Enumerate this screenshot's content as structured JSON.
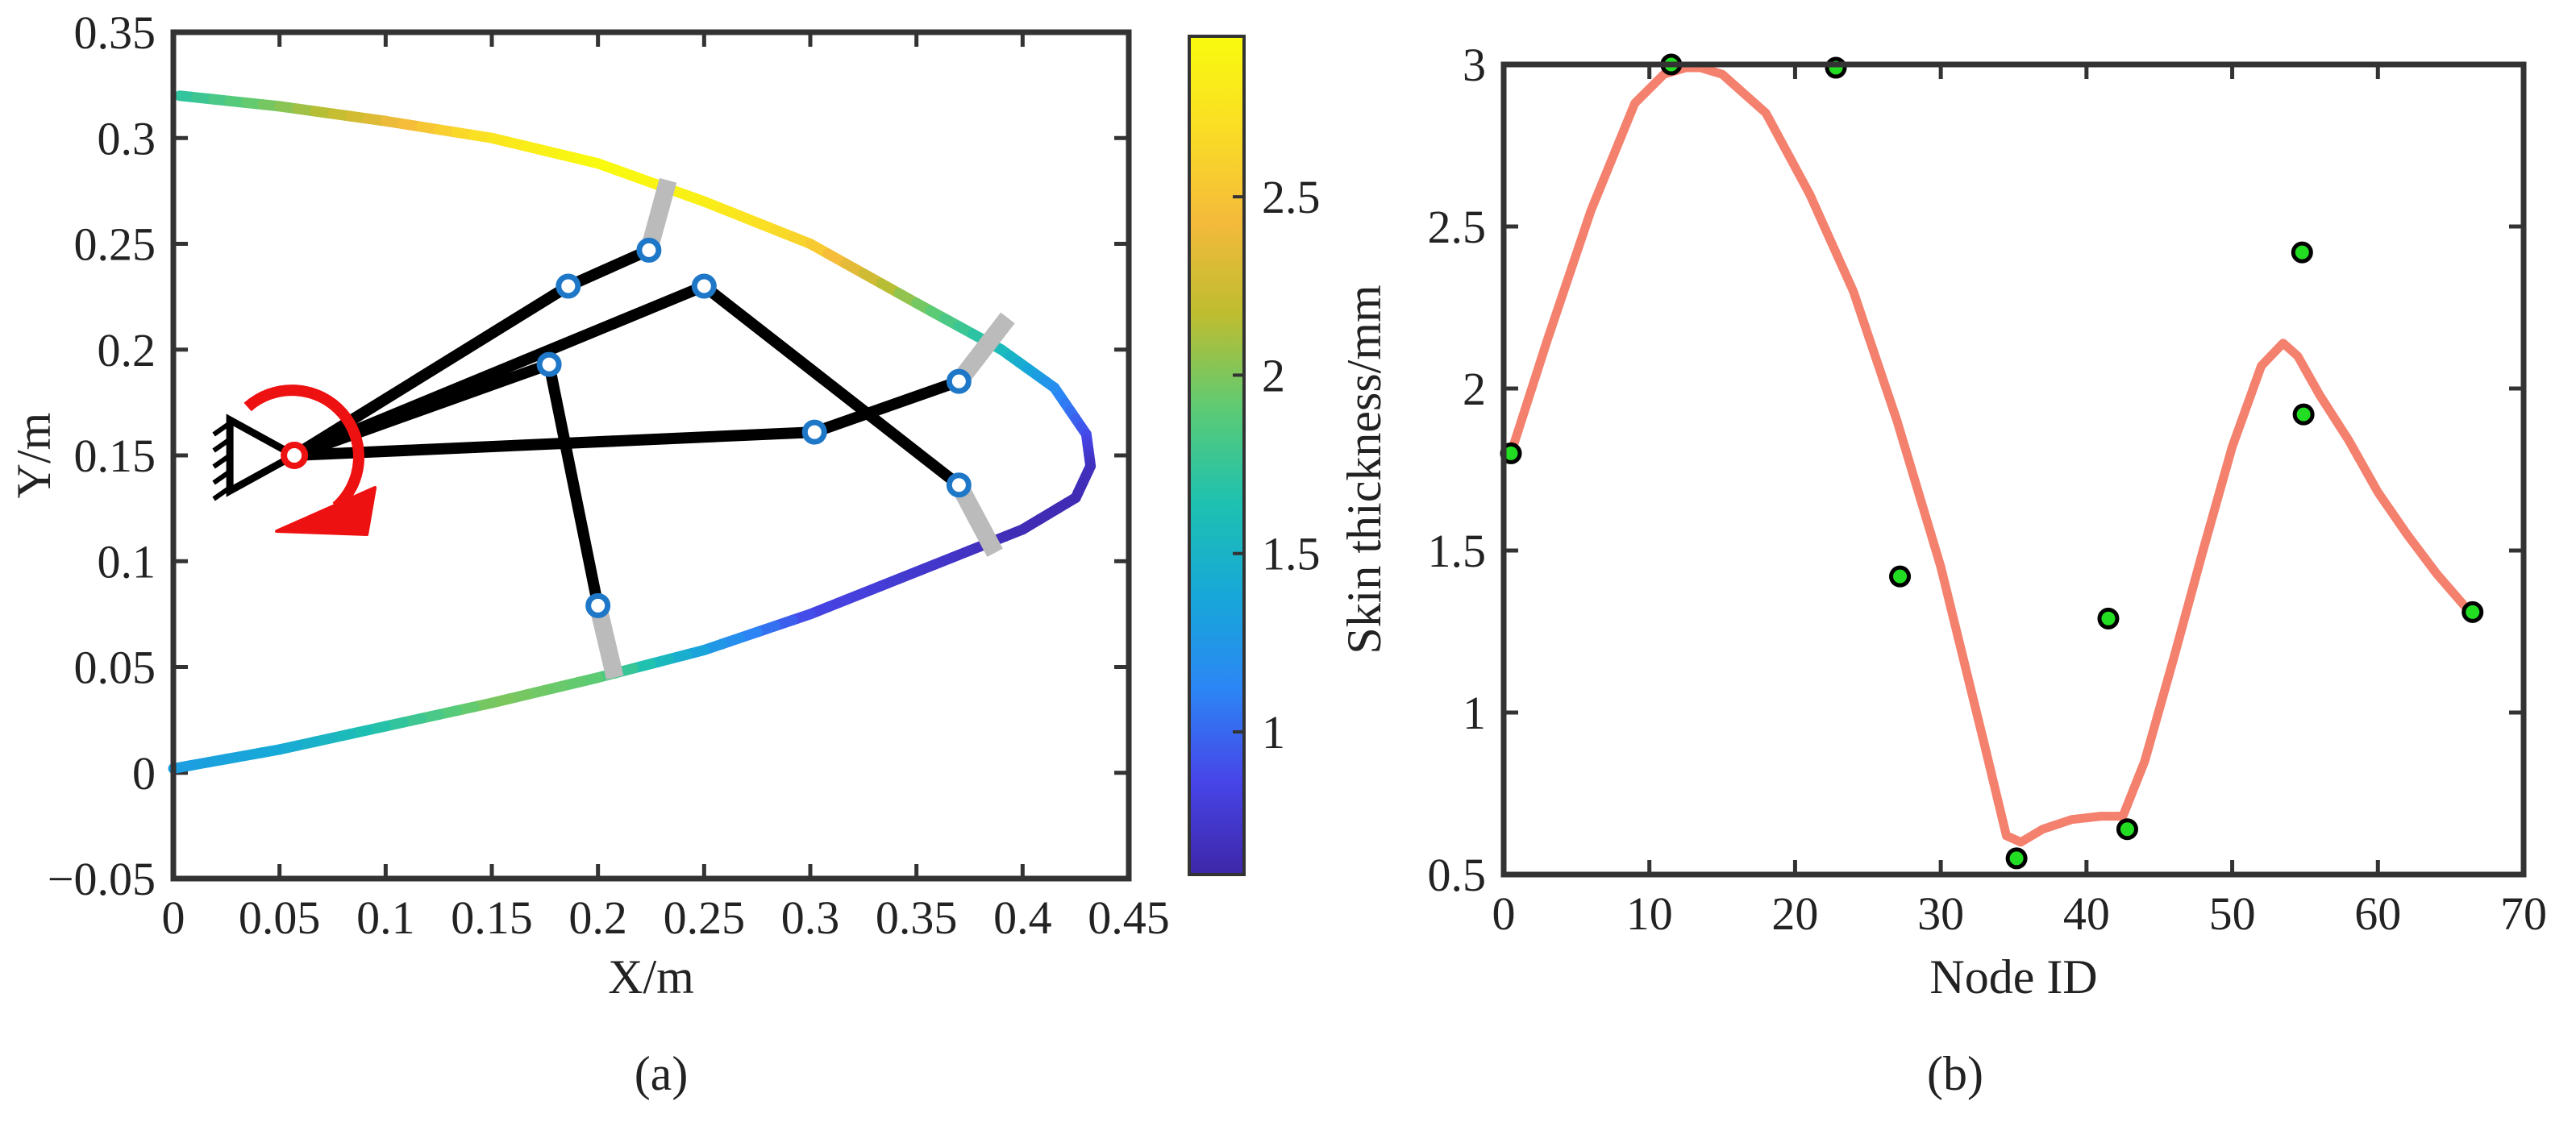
{
  "panels": {
    "a": {
      "caption": "(a)"
    },
    "b": {
      "caption": "(b)"
    }
  },
  "chart_data": [
    {
      "type": "scatter",
      "xlabel": "X/m",
      "ylabel": "Y/m",
      "xlim": [
        0,
        0.45
      ],
      "ylim": [
        -0.05,
        0.35
      ],
      "xticks": [
        "0",
        "0.05",
        "0.1",
        "0.15",
        "0.2",
        "0.25",
        "0.3",
        "0.35",
        "0.4",
        "0.45"
      ],
      "yticks": [
        "−0.05",
        "0",
        "0.05",
        "0.1",
        "0.15",
        "0.2",
        "0.25",
        "0.3",
        "0.35"
      ],
      "colorbar": {
        "range": [
          0.6,
          2.95
        ],
        "ticks": [
          "1",
          "1.5",
          "2",
          "2.5"
        ],
        "colormap": [
          "#3e26a8",
          "#4745e8",
          "#2b86f5",
          "#17a8d8",
          "#1ec1b0",
          "#5ccb74",
          "#bdbd30",
          "#f4ba3b",
          "#fadd25",
          "#f9fb0e"
        ]
      },
      "skin_curve": [
        {
          "x": 0.003,
          "y": 0.32,
          "v": 1.7
        },
        {
          "x": 0.05,
          "y": 0.315,
          "v": 2.0
        },
        {
          "x": 0.1,
          "y": 0.308,
          "v": 2.35
        },
        {
          "x": 0.15,
          "y": 0.3,
          "v": 2.75
        },
        {
          "x": 0.2,
          "y": 0.288,
          "v": 2.95
        },
        {
          "x": 0.25,
          "y": 0.27,
          "v": 2.85
        },
        {
          "x": 0.3,
          "y": 0.25,
          "v": 2.6
        },
        {
          "x": 0.35,
          "y": 0.222,
          "v": 2.0
        },
        {
          "x": 0.39,
          "y": 0.2,
          "v": 1.6
        },
        {
          "x": 0.415,
          "y": 0.182,
          "v": 1.2
        },
        {
          "x": 0.43,
          "y": 0.16,
          "v": 0.9
        },
        {
          "x": 0.432,
          "y": 0.145,
          "v": 0.7
        },
        {
          "x": 0.425,
          "y": 0.13,
          "v": 0.65
        },
        {
          "x": 0.4,
          "y": 0.115,
          "v": 0.65
        },
        {
          "x": 0.35,
          "y": 0.095,
          "v": 0.75
        },
        {
          "x": 0.3,
          "y": 0.075,
          "v": 0.85
        },
        {
          "x": 0.25,
          "y": 0.058,
          "v": 1.3
        },
        {
          "x": 0.2,
          "y": 0.045,
          "v": 1.9
        },
        {
          "x": 0.15,
          "y": 0.033,
          "v": 2.0
        },
        {
          "x": 0.1,
          "y": 0.022,
          "v": 1.7
        },
        {
          "x": 0.05,
          "y": 0.011,
          "v": 1.4
        },
        {
          "x": 0.0,
          "y": 0.002,
          "v": 1.3
        }
      ],
      "pivot": {
        "x": 0.057,
        "y": 0.15
      },
      "joints": [
        {
          "x": 0.186,
          "y": 0.23
        },
        {
          "x": 0.224,
          "y": 0.247
        },
        {
          "x": 0.25,
          "y": 0.23
        },
        {
          "x": 0.177,
          "y": 0.193
        },
        {
          "x": 0.302,
          "y": 0.161
        },
        {
          "x": 0.37,
          "y": 0.185
        },
        {
          "x": 0.37,
          "y": 0.136
        },
        {
          "x": 0.2,
          "y": 0.079
        }
      ],
      "links": [
        {
          "from": "pivot",
          "to": 0
        },
        {
          "from": 0,
          "to": 1
        },
        {
          "from": "pivot",
          "to": 2
        },
        {
          "from": 2,
          "to": 6
        },
        {
          "from": "pivot",
          "to": 3
        },
        {
          "from": 3,
          "to": 7
        },
        {
          "from": "pivot",
          "to": 4
        },
        {
          "from": 4,
          "to": 5
        }
      ],
      "connectors": [
        {
          "joint": 1,
          "x": 0.233,
          "y": 0.28
        },
        {
          "joint": 5,
          "x": 0.393,
          "y": 0.215
        },
        {
          "joint": 6,
          "x": 0.387,
          "y": 0.104
        },
        {
          "joint": 7,
          "x": 0.208,
          "y": 0.045
        }
      ]
    },
    {
      "type": "line",
      "xlabel": "Node ID",
      "ylabel": "Skin thickness/mm",
      "xlim": [
        0,
        70
      ],
      "ylim": [
        0.5,
        3
      ],
      "xticks": [
        "0",
        "10",
        "20",
        "30",
        "40",
        "50",
        "60",
        "70"
      ],
      "yticks": [
        "0.5",
        "1",
        "1.5",
        "2",
        "2.5",
        "3"
      ],
      "series": [
        {
          "type": "line",
          "color": "#f4806e",
          "x": [
            0.5,
            3,
            6,
            9,
            11,
            12.5,
            13.5,
            15,
            18,
            21,
            24,
            27,
            30,
            33,
            34.5,
            35.5,
            37,
            39,
            41,
            42.5,
            44,
            46,
            48,
            50,
            52,
            53.5,
            54.5,
            56,
            58,
            60,
            62,
            64,
            66.5
          ],
          "y": [
            1.8,
            2.15,
            2.55,
            2.88,
            2.97,
            2.99,
            2.99,
            2.97,
            2.85,
            2.6,
            2.3,
            1.9,
            1.45,
            0.9,
            0.62,
            0.6,
            0.64,
            0.67,
            0.68,
            0.68,
            0.85,
            1.17,
            1.5,
            1.82,
            2.07,
            2.14,
            2.1,
            1.98,
            1.84,
            1.68,
            1.55,
            1.43,
            1.3
          ]
        },
        {
          "type": "scatter",
          "color": "#22dd22",
          "x": [
            0.5,
            11.5,
            22.8,
            27.2,
            35.2,
            41.5,
            42.8,
            54.8,
            54.9,
            66.5
          ],
          "y": [
            1.8,
            3.0,
            2.99,
            1.42,
            0.55,
            1.29,
            0.64,
            2.42,
            1.92,
            1.31
          ]
        }
      ]
    }
  ]
}
